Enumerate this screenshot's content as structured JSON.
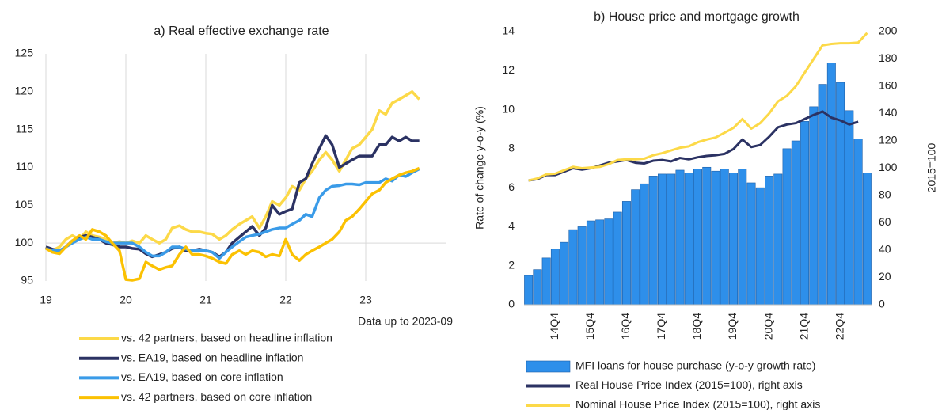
{
  "chart_data": [
    {
      "type": "line",
      "title": "a) Real effective exchange rate",
      "x": [
        19,
        19.08,
        19.17,
        19.25,
        19.33,
        19.42,
        19.5,
        19.58,
        19.67,
        19.75,
        19.83,
        19.92,
        20,
        20.08,
        20.17,
        20.25,
        20.33,
        20.42,
        20.5,
        20.58,
        20.67,
        20.75,
        20.83,
        20.92,
        21,
        21.08,
        21.17,
        21.25,
        21.33,
        21.42,
        21.5,
        21.58,
        21.67,
        21.75,
        21.83,
        21.92,
        22,
        22.08,
        22.17,
        22.25,
        22.33,
        22.42,
        22.5,
        22.58,
        22.67,
        22.75,
        22.83,
        22.92,
        23,
        23.08,
        23.17,
        23.25,
        23.33,
        23.42,
        23.5,
        23.58,
        23.67
      ],
      "xlim": [
        19,
        24
      ],
      "xticks": [
        19,
        20,
        21,
        22,
        23
      ],
      "ylim": [
        95,
        125
      ],
      "yticks": [
        95,
        100,
        105,
        110,
        115,
        120,
        125
      ],
      "grid": "x",
      "reference_line": 100,
      "annotation": "Data up to 2023-09",
      "series": [
        {
          "name": "vs. 42 partners, based on headline inflation",
          "color": "#fcd948",
          "values": [
            99.5,
            99,
            99.5,
            100.5,
            101,
            100.5,
            101.5,
            101,
            100.8,
            100.5,
            100,
            100.2,
            100,
            100.3,
            100,
            101,
            100.5,
            100,
            100.5,
            102,
            102.3,
            101.8,
            101.5,
            101.5,
            101.3,
            101.2,
            100.5,
            101,
            101.8,
            102.5,
            103,
            103.5,
            102,
            103.5,
            105.5,
            105,
            106,
            107.5,
            107,
            108.5,
            109.5,
            111,
            112,
            111,
            109.5,
            111,
            112.5,
            113,
            114,
            115,
            117.5,
            117,
            118.5,
            119,
            119.5,
            120,
            119
          ]
        },
        {
          "name": "vs. EA19, based on headline inflation",
          "color": "#2b3263",
          "values": [
            99.5,
            99.2,
            99,
            99.5,
            100.3,
            100.8,
            101,
            100.8,
            100.5,
            100,
            99.8,
            99.5,
            99.5,
            99.3,
            99.2,
            98.6,
            98.2,
            98.5,
            98.8,
            99.3,
            99.5,
            99,
            99,
            99.2,
            99,
            98.8,
            98.2,
            98.8,
            100,
            100.8,
            101.5,
            102.2,
            101,
            102,
            105,
            103.8,
            104.2,
            104.5,
            108,
            108.5,
            110.5,
            112.5,
            114.2,
            113,
            110,
            110.5,
            111,
            111.5,
            111.5,
            111.5,
            113,
            113,
            114,
            113.5,
            114,
            113.5,
            113.5
          ]
        },
        {
          "name": "vs. EA19, based on core inflation",
          "color": "#3a9be8",
          "values": [
            99.3,
            99,
            99,
            99.5,
            100,
            100.5,
            100.8,
            100.5,
            100.5,
            100.2,
            100,
            100,
            100,
            100,
            99.5,
            98.8,
            98.3,
            98.3,
            98.8,
            99.5,
            99.5,
            99.2,
            99,
            99,
            99,
            98.8,
            98,
            98.8,
            99.5,
            100.2,
            100.8,
            101,
            101.2,
            101.5,
            101.8,
            102,
            102,
            102.5,
            103,
            103.8,
            103.5,
            106,
            107,
            107.5,
            107.6,
            107.8,
            107.8,
            107.7,
            108,
            108,
            108,
            108.5,
            108.2,
            109,
            108.8,
            109.3,
            109.8
          ]
        },
        {
          "name": "vs. 42 partners, based on core inflation",
          "color": "#fbc102",
          "values": [
            99.3,
            98.8,
            98.6,
            99.5,
            100.3,
            101,
            100.5,
            101.8,
            101.5,
            101,
            100,
            99,
            95.2,
            95.1,
            95.3,
            97.5,
            97,
            96.5,
            96.8,
            97,
            98.5,
            99.5,
            98.5,
            98.5,
            98.3,
            98,
            97.5,
            97.3,
            98.5,
            99,
            98.5,
            99,
            98.8,
            98.2,
            98.5,
            98.3,
            100.5,
            98.5,
            97.7,
            98.5,
            99,
            99.5,
            100,
            100.5,
            101.5,
            103,
            103.5,
            104.5,
            105.5,
            106.5,
            107,
            108,
            108.5,
            109,
            109.3,
            109.5,
            109.9
          ]
        }
      ]
    },
    {
      "type": "bar_line",
      "title": "b) House price and mortgage growth",
      "categories": [
        null,
        null,
        null,
        "14Q4",
        null,
        null,
        null,
        "15Q4",
        null,
        null,
        null,
        "16Q4",
        null,
        null,
        null,
        "17Q4",
        null,
        null,
        null,
        "18Q4",
        null,
        null,
        null,
        "19Q4",
        null,
        null,
        null,
        "20Q4",
        null,
        null,
        null,
        "21Q4",
        null,
        null,
        null,
        "22Q4",
        null,
        null,
        null
      ],
      "ylabel": "Rate of change y-o-y (%)",
      "y2label": "2015=100",
      "ylim": [
        0,
        14
      ],
      "yticks": [
        0,
        2,
        4,
        6,
        8,
        10,
        12,
        14
      ],
      "y2lim": [
        0,
        200
      ],
      "y2ticks": [
        0,
        20,
        40,
        60,
        80,
        100,
        120,
        140,
        160,
        180,
        200
      ],
      "series": [
        {
          "name": "MFI loans for house purchase (y-o-y growth rate)",
          "kind": "bar",
          "color": "#2e8fea",
          "values": [
            1.5,
            1.8,
            2.4,
            2.85,
            3.2,
            3.85,
            4.0,
            4.3,
            4.35,
            4.4,
            4.75,
            5.3,
            5.9,
            6.2,
            6.6,
            6.7,
            6.7,
            6.9,
            6.75,
            6.95,
            7.05,
            6.85,
            6.95,
            6.75,
            6.95,
            6.25,
            6.0,
            6.6,
            6.7,
            8.0,
            8.4,
            9.4,
            10.15,
            11.3,
            12.4,
            11.4,
            9.95,
            8.5,
            6.75
          ]
        },
        {
          "name": "Real House Price Index (2015=100), right axis",
          "kind": "line",
          "axis": "y2",
          "color": "#2b3263",
          "values": [
            91,
            92,
            95,
            95,
            97.5,
            100,
            99,
            100,
            102,
            104,
            105,
            106,
            104,
            103.5,
            105.5,
            106,
            105,
            107.5,
            106.5,
            108,
            109,
            109.5,
            110.5,
            114,
            121,
            115.5,
            117,
            123,
            130,
            132,
            133,
            136,
            139,
            141.5,
            137,
            135,
            132,
            134,
            null
          ]
        },
        {
          "name": "Nominal House Price Index (2015=100), right axis",
          "kind": "line",
          "axis": "y2",
          "color": "#fcd948",
          "values": [
            91,
            92.5,
            95.5,
            96,
            98.5,
            101,
            100,
            100.5,
            101,
            103,
            106,
            106.5,
            106.5,
            107,
            109.5,
            111,
            113,
            115,
            116,
            119,
            121,
            122.5,
            126,
            129.5,
            136,
            129,
            133,
            140,
            149,
            153,
            160,
            170,
            180,
            190,
            191,
            191.5,
            191.5,
            192,
            199
          ]
        }
      ]
    }
  ]
}
